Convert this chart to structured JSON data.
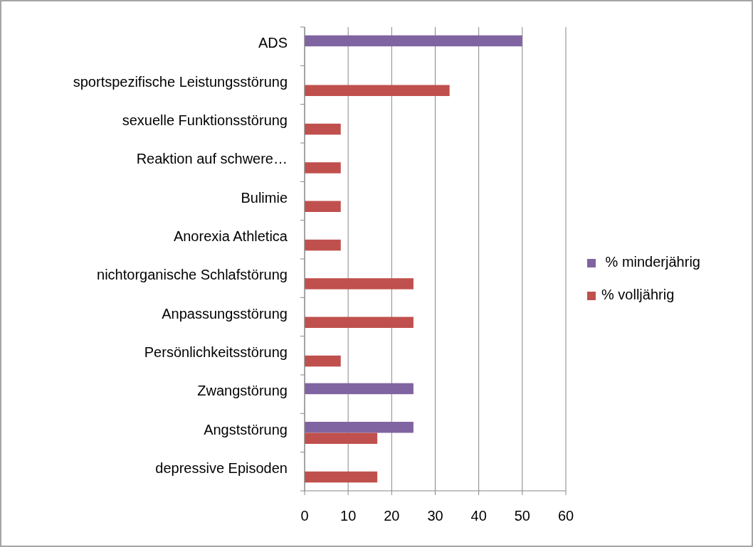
{
  "chart_data": {
    "type": "bar",
    "orientation": "horizontal",
    "categories": [
      "ADS",
      "sportspezifische Leistungsstörung",
      "sexuelle Funktionsstörung",
      "Reaktion auf schwere…",
      "Bulimie",
      "Anorexia Athletica",
      "nichtorganische Schlafstörung",
      "Anpassungsstörung",
      "Persönlichkeitsstörung",
      "Zwangstörung",
      "Angststörung",
      "depressive Episoden"
    ],
    "series": [
      {
        "name": " % minderjährig",
        "color": "#8064a2",
        "values": [
          50,
          null,
          null,
          null,
          null,
          null,
          null,
          null,
          null,
          25,
          25,
          null
        ]
      },
      {
        "name": "% volljährig",
        "color": "#c0504d",
        "values": [
          null,
          33.3,
          8.3,
          8.3,
          8.3,
          8.3,
          25,
          25,
          8.3,
          null,
          16.7,
          16.7
        ]
      }
    ],
    "xlim": [
      0,
      60
    ],
    "xticks": [
      0,
      10,
      20,
      30,
      40,
      50,
      60
    ],
    "grid": "x",
    "legend": "right"
  }
}
